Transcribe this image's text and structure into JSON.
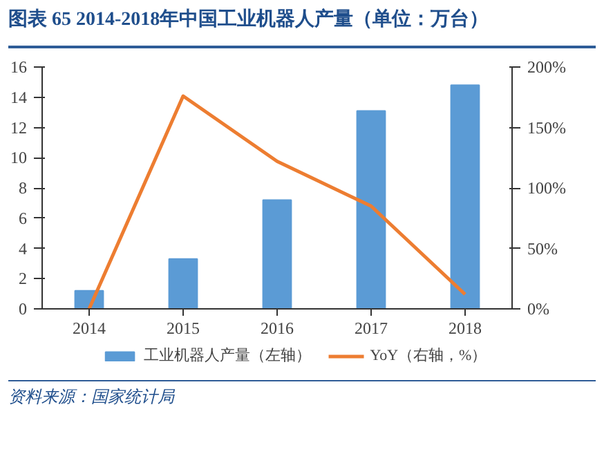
{
  "chart_data": {
    "type": "bar",
    "title": "图表 65 2014-2018年中国工业机器人产量（单位：万台）",
    "categories": [
      "2014",
      "2015",
      "2016",
      "2017",
      "2018"
    ],
    "series": [
      {
        "name": "工业机器人产量（左轴）",
        "color": "#5b9bd5",
        "values": [
          1.2,
          3.3,
          7.2,
          13.1,
          14.8
        ]
      },
      {
        "name": "YoY（右轴，%）",
        "type": "line",
        "axis": "y2",
        "color": "#ed7d31",
        "values": [
          0,
          176,
          122,
          85,
          12
        ]
      }
    ],
    "ylim": [
      0,
      16
    ],
    "yticks": [
      0,
      2,
      4,
      6,
      8,
      10,
      12,
      14,
      16
    ],
    "y2lim": [
      0,
      200
    ],
    "y2ticks": [
      {
        "value": 0,
        "label": "0%"
      },
      {
        "value": 50,
        "label": "50%"
      },
      {
        "value": 100,
        "label": "100%"
      },
      {
        "value": 150,
        "label": "150%"
      },
      {
        "value": 200,
        "label": "200%"
      }
    ],
    "grid": false,
    "legend": "bottom",
    "line_style": "solid",
    "annotations": [
      "资料来源：国家统计局"
    ]
  }
}
